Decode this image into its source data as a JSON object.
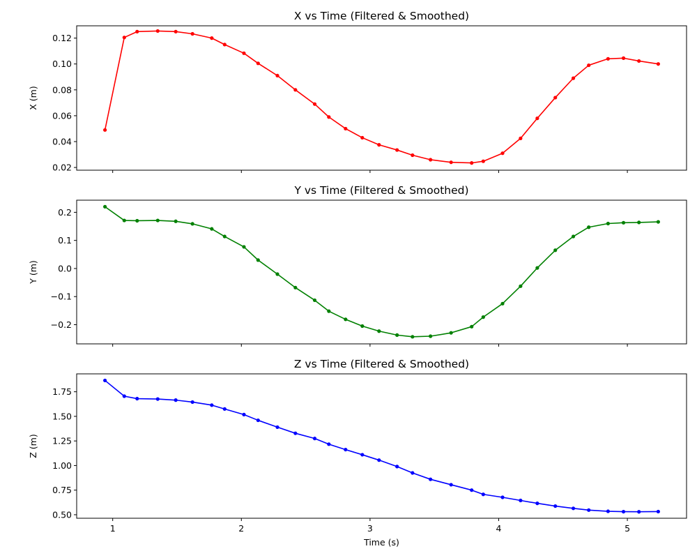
{
  "chart_data": [
    {
      "type": "line",
      "title": "X vs Time (Filtered & Smoothed)",
      "xlabel": "",
      "ylabel": "X (m)",
      "xlim": [
        0.72,
        5.46
      ],
      "ylim": [
        0.0179,
        0.1295
      ],
      "xticks": [
        "1",
        "2",
        "3",
        "4",
        "5"
      ],
      "yticks": [
        0.02,
        0.04,
        0.06,
        0.08,
        0.1,
        0.12
      ],
      "ytick_labels": [
        "0.02",
        "0.04",
        "0.06",
        "0.08",
        "0.10",
        "0.12"
      ],
      "grid": false,
      "color": "#ff0000",
      "series": [
        {
          "x": [
            0.94,
            1.09,
            1.19,
            1.35,
            1.49,
            1.62,
            1.77,
            1.87,
            2.02,
            2.13,
            2.28,
            2.42,
            2.57,
            2.68,
            2.81,
            2.94,
            3.07,
            3.21,
            3.33,
            3.47,
            3.63,
            3.79,
            3.88,
            4.03,
            4.17,
            4.3,
            4.44,
            4.58,
            4.7,
            4.85,
            4.97,
            5.09,
            5.24
          ],
          "y": [
            0.049,
            0.1205,
            0.125,
            0.1255,
            0.125,
            0.1233,
            0.12,
            0.115,
            0.1083,
            0.1005,
            0.091,
            0.08,
            0.069,
            0.059,
            0.05,
            0.043,
            0.0375,
            0.0335,
            0.0295,
            0.026,
            0.024,
            0.0235,
            0.0248,
            0.031,
            0.0425,
            0.058,
            0.074,
            0.089,
            0.099,
            0.104,
            0.1045,
            0.1023,
            0.1
          ]
        }
      ]
    },
    {
      "type": "line",
      "title": "Y vs Time (Filtered & Smoothed)",
      "xlabel": "",
      "ylabel": "Y (m)",
      "xlim": [
        0.72,
        5.46
      ],
      "ylim": [
        -0.2683,
        0.2432
      ],
      "xticks": [
        "1",
        "2",
        "3",
        "4",
        "5"
      ],
      "yticks": [
        -0.2,
        -0.1,
        0.0,
        0.1,
        0.2
      ],
      "ytick_labels": [
        "−0.2",
        "−0.1",
        "0.0",
        "0.1",
        "0.2"
      ],
      "grid": false,
      "color": "#008000",
      "series": [
        {
          "x": [
            0.94,
            1.09,
            1.19,
            1.35,
            1.49,
            1.62,
            1.77,
            1.87,
            2.02,
            2.13,
            2.28,
            2.42,
            2.57,
            2.68,
            2.81,
            2.94,
            3.07,
            3.21,
            3.33,
            3.47,
            3.63,
            3.79,
            3.88,
            4.03,
            4.17,
            4.3,
            4.44,
            4.58,
            4.7,
            4.85,
            4.97,
            5.09,
            5.24
          ],
          "y": [
            0.22,
            0.171,
            0.17,
            0.171,
            0.168,
            0.159,
            0.141,
            0.114,
            0.077,
            0.03,
            -0.02,
            -0.068,
            -0.113,
            -0.152,
            -0.181,
            -0.205,
            -0.223,
            -0.237,
            -0.243,
            -0.241,
            -0.229,
            -0.207,
            -0.173,
            -0.125,
            -0.063,
            0.002,
            0.065,
            0.114,
            0.147,
            0.16,
            0.163,
            0.164,
            0.166
          ]
        }
      ]
    },
    {
      "type": "line",
      "title": "Z vs Time (Filtered & Smoothed)",
      "xlabel": "Time (s)",
      "ylabel": "Z (m)",
      "xlim": [
        0.72,
        5.46
      ],
      "ylim": [
        0.4643,
        1.9319
      ],
      "xticks": [
        "1",
        "2",
        "3",
        "4",
        "5"
      ],
      "yticks": [
        0.5,
        0.75,
        1.0,
        1.25,
        1.5,
        1.75
      ],
      "ytick_labels": [
        "0.50",
        "0.75",
        "1.00",
        "1.25",
        "1.50",
        "1.75"
      ],
      "grid": false,
      "color": "#0000ff",
      "series": [
        {
          "x": [
            0.94,
            1.09,
            1.19,
            1.35,
            1.49,
            1.62,
            1.77,
            1.87,
            2.02,
            2.13,
            2.28,
            2.42,
            2.57,
            2.68,
            2.81,
            2.94,
            3.07,
            3.21,
            3.33,
            3.47,
            3.63,
            3.79,
            3.88,
            4.03,
            4.17,
            4.3,
            4.44,
            4.58,
            4.7,
            4.85,
            4.97,
            5.09,
            5.24
          ],
          "y": [
            1.865,
            1.705,
            1.68,
            1.676,
            1.665,
            1.645,
            1.614,
            1.575,
            1.518,
            1.46,
            1.39,
            1.328,
            1.275,
            1.217,
            1.162,
            1.11,
            1.055,
            0.99,
            0.925,
            0.86,
            0.805,
            0.75,
            0.707,
            0.677,
            0.645,
            0.616,
            0.588,
            0.565,
            0.547,
            0.535,
            0.531,
            0.53,
            0.532
          ]
        }
      ]
    }
  ]
}
